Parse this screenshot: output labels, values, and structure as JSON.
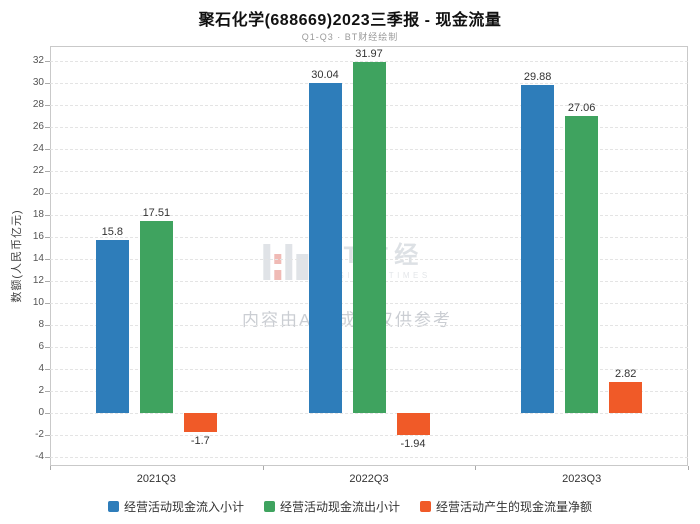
{
  "title": "聚石化学(688669)2023三季报 - 现金流量",
  "subtitle": "Q1-Q3 · BT财经绘制",
  "watermark": {
    "logo_text": "BT财经",
    "logo_sub": "BUSINESSTIMES",
    "disclaimer": "内容由AI生成，仅供参考"
  },
  "chart_data": {
    "type": "bar",
    "title": "聚石化学(688669)2023三季报 - 现金流量",
    "subtitle": "Q1-Q3 · BT财经绘制",
    "categories": [
      "2021Q3",
      "2022Q3",
      "2023Q3"
    ],
    "series": [
      {
        "key": "inflow",
        "name": "经营活动现金流入小计",
        "color": "#2e7dba",
        "values": [
          15.8,
          30.04,
          29.88
        ]
      },
      {
        "key": "outflow",
        "name": "经营活动现金流出小计",
        "color": "#3fa35f",
        "values": [
          17.51,
          31.97,
          27.06
        ]
      },
      {
        "key": "net",
        "name": "经营活动产生的现金流量净额",
        "color": "#f05a28",
        "values": [
          -1.7,
          -1.94,
          2.82
        ]
      }
    ],
    "xlabel": "",
    "ylabel": "数额(人民币亿元)",
    "ylim": [
      -4.8,
      33.4
    ],
    "yticks": [
      -4,
      -2,
      0,
      2,
      4,
      6,
      8,
      10,
      12,
      14,
      16,
      18,
      20,
      22,
      24,
      26,
      28,
      30,
      32
    ],
    "grid": true,
    "legend_position": "bottom"
  }
}
